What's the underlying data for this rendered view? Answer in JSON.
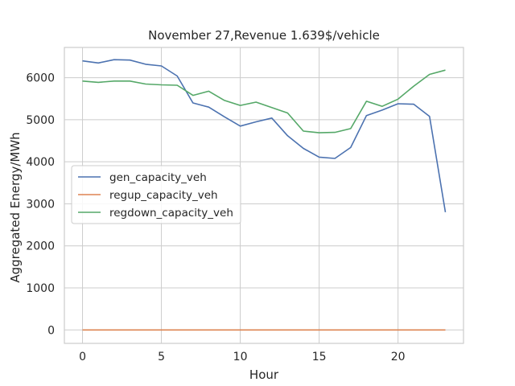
{
  "chart_data": {
    "type": "line",
    "title": "November 27,Revenue 1.639$/vehicle",
    "xlabel": "Hour",
    "ylabel": "Aggregated Energy/MWh",
    "xlim": [
      -1.15,
      24.15
    ],
    "ylim": [
      -320,
      6720
    ],
    "xticks": [
      0,
      5,
      10,
      15,
      20
    ],
    "yticks": [
      0,
      1000,
      2000,
      3000,
      4000,
      5000,
      6000
    ],
    "grid": true,
    "legend_position": "center-left",
    "x": [
      0,
      1,
      2,
      3,
      4,
      5,
      6,
      7,
      8,
      9,
      10,
      11,
      12,
      13,
      14,
      15,
      16,
      17,
      18,
      19,
      20,
      21,
      22,
      23
    ],
    "series": [
      {
        "name": "gen_capacity_veh",
        "color": "#4c72b0",
        "values": [
          6400,
          6350,
          6430,
          6420,
          6320,
          6280,
          6040,
          5400,
          5300,
          5070,
          4850,
          4950,
          5040,
          4620,
          4320,
          4110,
          4080,
          4340,
          5100,
          5230,
          5380,
          5370,
          5080,
          2800
        ]
      },
      {
        "name": "regup_capacity_veh",
        "color": "#dd8452",
        "values": [
          0,
          0,
          0,
          0,
          0,
          0,
          0,
          0,
          0,
          0,
          0,
          0,
          0,
          0,
          0,
          0,
          0,
          0,
          0,
          0,
          0,
          0,
          0,
          0
        ]
      },
      {
        "name": "regdown_capacity_veh",
        "color": "#55a868",
        "values": [
          5920,
          5890,
          5920,
          5920,
          5850,
          5830,
          5820,
          5580,
          5680,
          5460,
          5340,
          5420,
          5290,
          5160,
          4730,
          4690,
          4700,
          4790,
          5440,
          5320,
          5490,
          5800,
          6080,
          6180
        ]
      }
    ]
  }
}
